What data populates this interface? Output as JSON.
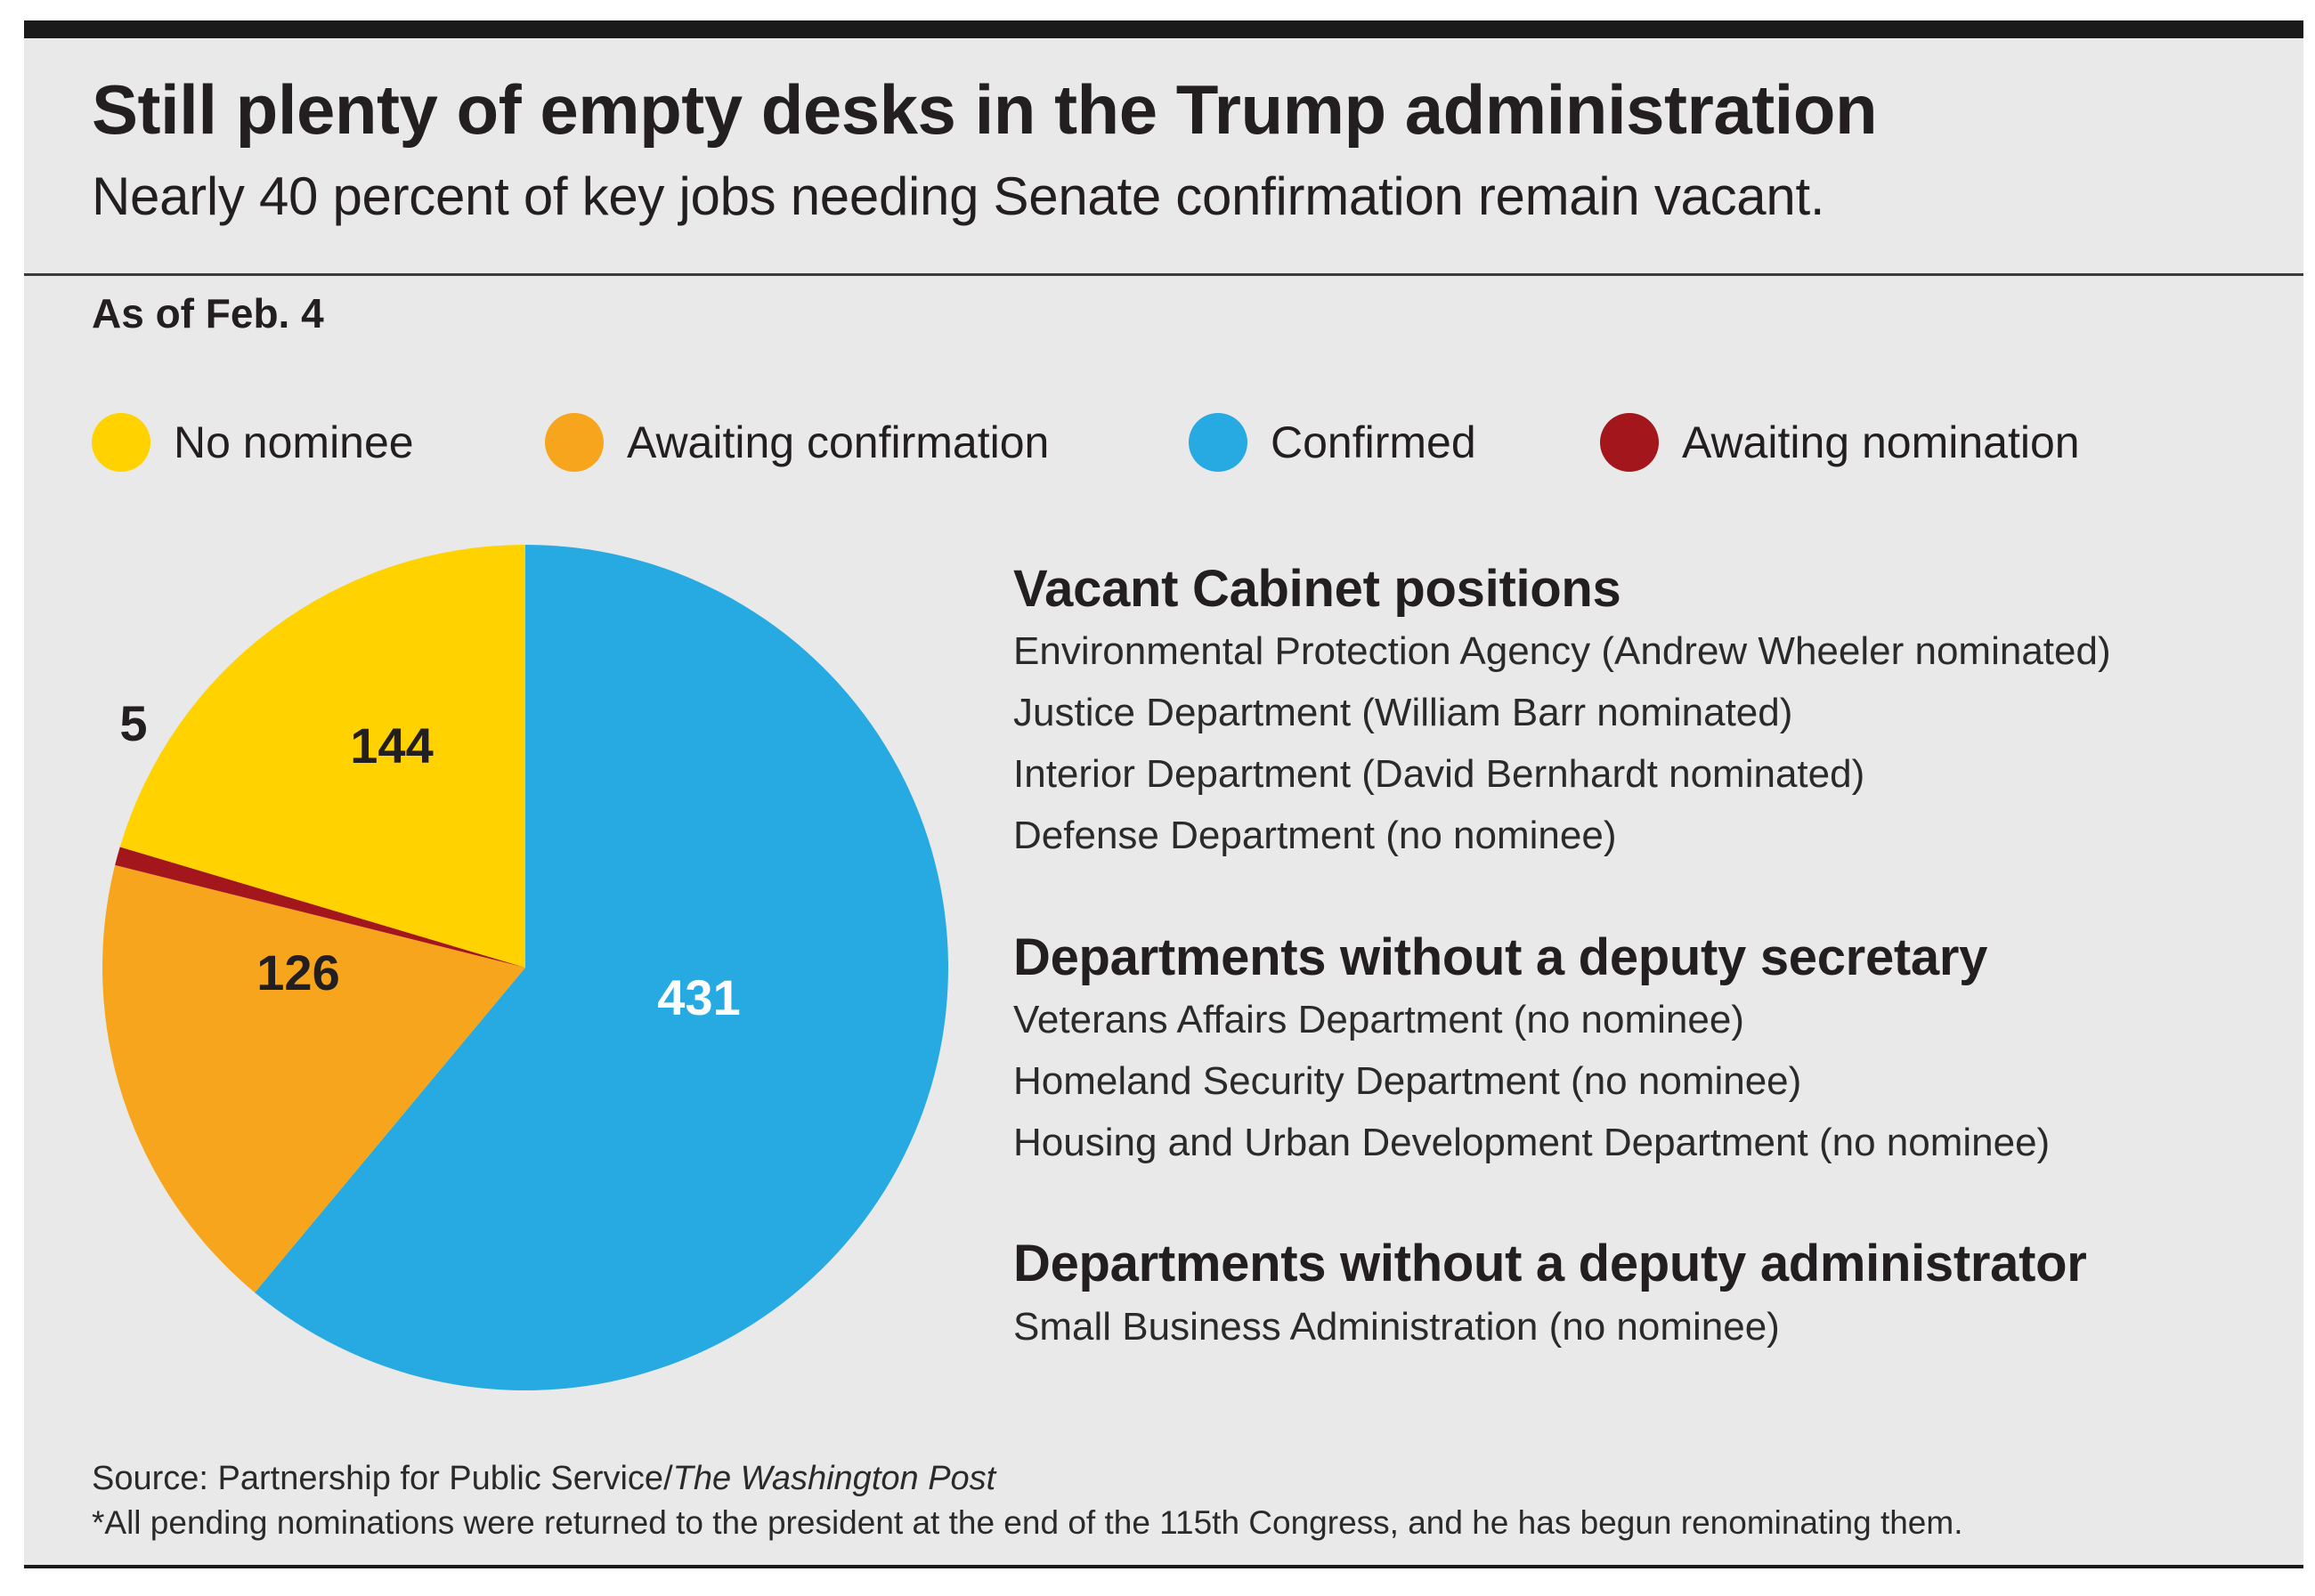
{
  "title": "Still plenty of empty desks in the Trump administration",
  "subtitle": "Nearly 40 percent of key jobs needing Senate confirmation remain vacant.",
  "as_of": "As of Feb. 4",
  "legend": [
    {
      "label": "No nominee",
      "color": "#ffd200"
    },
    {
      "label": "Awaiting confirmation",
      "color": "#f7a51d"
    },
    {
      "label": "Confirmed",
      "color": "#27a9e1"
    },
    {
      "label": "Awaiting nomination",
      "color": "#a3161b"
    }
  ],
  "chart_data": {
    "type": "pie",
    "slices": [
      {
        "label": "Confirmed",
        "value": 431,
        "color": "#27a9e1",
        "text_color": "#ffffff",
        "display": "431"
      },
      {
        "label": "Awaiting confirmation",
        "value": 126,
        "color": "#f7a51d",
        "text_color": "#231f20",
        "display": "126"
      },
      {
        "label": "Awaiting nomination",
        "value": 5,
        "color": "#a3161b",
        "text_color": "#231f20",
        "display": "5"
      },
      {
        "label": "No nominee",
        "value": 144,
        "color": "#ffd200",
        "text_color": "#231f20",
        "display": "144"
      }
    ],
    "start": "12 o'clock, clockwise"
  },
  "sections": [
    {
      "heading": "Vacant Cabinet positions",
      "items": [
        "Environmental Protection Agency (Andrew Wheeler nominated)",
        "Justice Department (William Barr nominated)",
        "Interior Department (David Bernhardt nominated)",
        "Defense Department (no nominee)"
      ]
    },
    {
      "heading": "Departments without a deputy secretary",
      "items": [
        "Veterans Affairs Department (no nominee)",
        "Homeland Security Department (no nominee)",
        "Housing and Urban Development Department (no nominee)"
      ]
    },
    {
      "heading": "Departments without a deputy administrator",
      "items": [
        "Small Business Administration (no nominee)"
      ]
    }
  ],
  "source_prefix": "Source: Partnership for Public Service/",
  "source_publication": "The Washington Post",
  "footnote": "*All pending nominations were returned to the president at the end of the 115th Congress, and he has begun renominating them."
}
